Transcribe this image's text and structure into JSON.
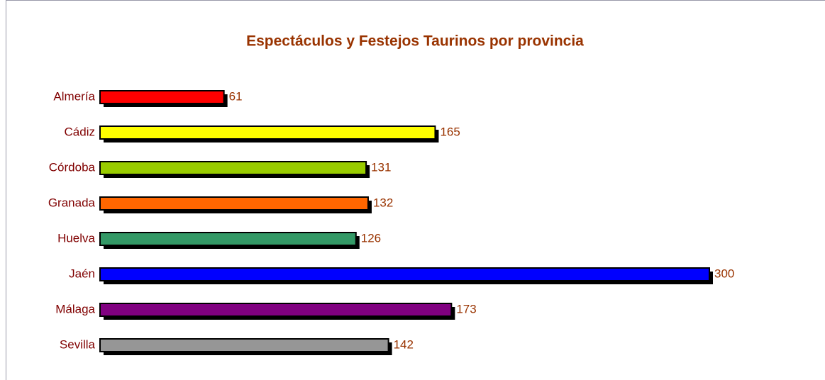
{
  "chart_data": {
    "type": "bar",
    "orientation": "horizontal",
    "title": "Espectáculos y Festejos Taurinos por provincia",
    "categories": [
      "Almería",
      "Cádiz",
      "Córdoba",
      "Granada",
      "Huelva",
      "Jaén",
      "Málaga",
      "Sevilla"
    ],
    "values": [
      61,
      165,
      131,
      132,
      126,
      300,
      173,
      142
    ],
    "colors": [
      "#ff0000",
      "#ffff00",
      "#99cc00",
      "#ff6600",
      "#339966",
      "#0000ff",
      "#800080",
      "#969696"
    ]
  }
}
